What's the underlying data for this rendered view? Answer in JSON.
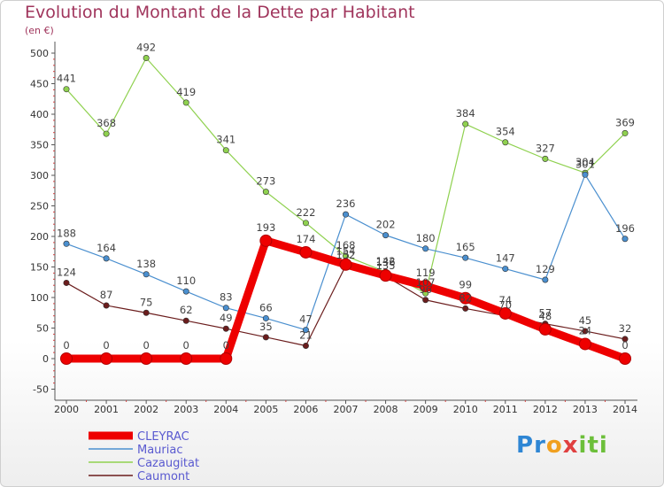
{
  "chart_data": {
    "type": "line",
    "title": "Evolution du Montant de la Dette par Habitant",
    "subtitle": "(en €)",
    "x": [
      "2000",
      "2001",
      "2002",
      "2003",
      "2004",
      "2005",
      "2006",
      "2007",
      "2008",
      "2009",
      "2010",
      "2011",
      "2012",
      "2013",
      "2014"
    ],
    "ylim": [
      -50,
      500
    ],
    "yticks": [
      "-50",
      "0",
      "50",
      "100",
      "150",
      "200",
      "250",
      "300",
      "350",
      "400",
      "450",
      "500"
    ],
    "grid": false,
    "legend": "bottom-left",
    "series": [
      {
        "name": "Caumont",
        "color": "#6b1d1d",
        "values": [
          124,
          87,
          75,
          62,
          49,
          35,
          21,
          152,
          135,
          96,
          82,
          70,
          57,
          45,
          32
        ],
        "labels": [
          "124",
          "87",
          "75",
          "62",
          "49",
          "35",
          "21",
          "152",
          "135",
          "96",
          "82",
          "70",
          "57",
          "45",
          "32"
        ]
      },
      {
        "name": "Cazaugitat",
        "color": "#8fd14f",
        "values": [
          441,
          368,
          492,
          419,
          341,
          273,
          222,
          168,
          142,
          107,
          384,
          354,
          327,
          304,
          369
        ],
        "labels": [
          "441",
          "368",
          "492",
          "419",
          "341",
          "273",
          "222",
          "168",
          "142",
          "107",
          "384",
          "354",
          "327",
          "304",
          "369"
        ]
      },
      {
        "name": "Mauriac",
        "color": "#4a8fcf",
        "values": [
          188,
          164,
          138,
          110,
          83,
          66,
          47,
          236,
          202,
          180,
          165,
          147,
          129,
          301,
          196
        ],
        "labels": [
          "188",
          "164",
          "138",
          "110",
          "83",
          "66",
          "47",
          "236",
          "202",
          "180",
          "165",
          "147",
          "129",
          "301",
          "196"
        ]
      },
      {
        "name": "CLEYRAC",
        "color": "#ee0000",
        "values": [
          0,
          0,
          0,
          0,
          0,
          193,
          174,
          154,
          136,
          119,
          99,
          74,
          48,
          24,
          0
        ],
        "labels": [
          "0",
          "0",
          "0",
          "0",
          "0",
          "193",
          "174",
          "154",
          "136",
          "119",
          "99",
          "74",
          "48",
          "24",
          "0"
        ]
      }
    ],
    "legend_order": [
      "CLEYRAC",
      "Mauriac",
      "Cazaugitat",
      "Caumont"
    ]
  },
  "logo": {
    "letters": [
      {
        "ch": "P",
        "color": "#2e86d4"
      },
      {
        "ch": "r",
        "color": "#2e86d4"
      },
      {
        "ch": "o",
        "color": "#f0a020"
      },
      {
        "ch": "x",
        "color": "#e04040"
      },
      {
        "ch": "i",
        "color": "#6cbf3a"
      },
      {
        "ch": "t",
        "color": "#6cbf3a"
      },
      {
        "ch": "i",
        "color": "#6cbf3a"
      }
    ]
  }
}
